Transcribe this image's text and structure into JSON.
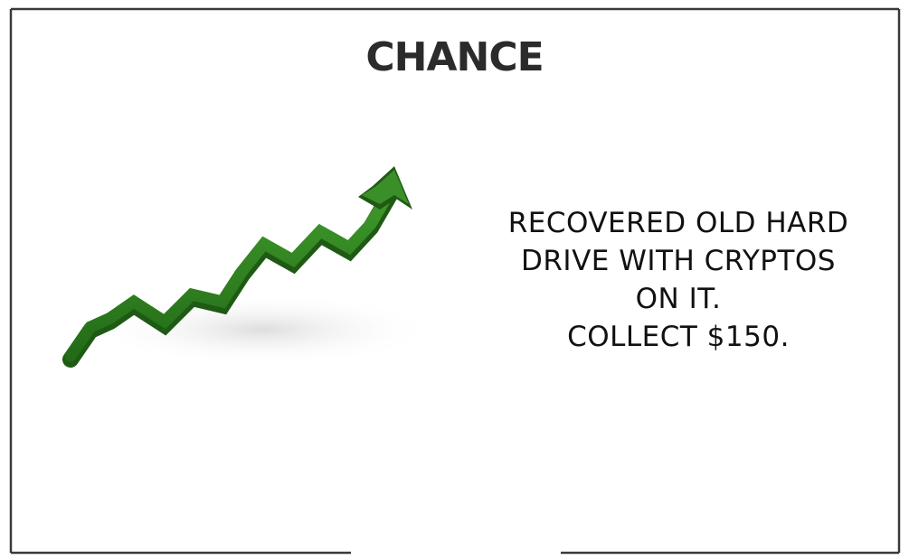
{
  "card": {
    "title": "CHANCE",
    "message_lines": [
      "RECOVERED OLD HARD",
      "DRIVE WITH CRYPTOS",
      "ON IT.",
      "COLLECT $150."
    ],
    "illustration_icon": "green-rising-arrow-icon",
    "colors": {
      "arrow_green": "#2e7d20",
      "arrow_dark": "#1f5a14",
      "border": "#3a3a3a",
      "text": "#111111"
    }
  }
}
